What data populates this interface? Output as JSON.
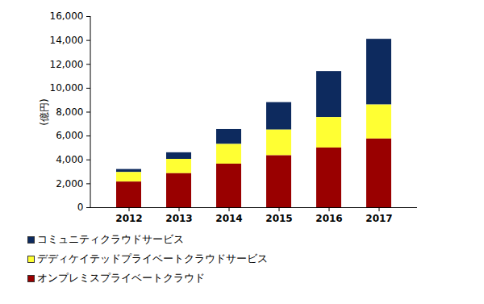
{
  "chart_data": {
    "type": "bar",
    "stacked": true,
    "y_label": "(億円)",
    "categories": [
      "2012",
      "2013",
      "2014",
      "2015",
      "2016",
      "2017"
    ],
    "series": [
      {
        "name": "コミュニティクラウドサービス",
        "color": "#0d2a5e",
        "values": [
          250,
          550,
          1250,
          2300,
          3850,
          5500
        ]
      },
      {
        "name": "デディケイテッドプライベートクラウドサービス",
        "color": "#ffff33",
        "values": [
          800,
          1200,
          1650,
          2150,
          2550,
          2850
        ]
      },
      {
        "name": "オンプレミスプライベートクラウド",
        "color": "#990000",
        "values": [
          2150,
          2850,
          3650,
          4350,
          5000,
          5750
        ]
      }
    ],
    "ylim": [
      0,
      16000
    ],
    "yticks": [
      0,
      {
        "value": 2000,
        "label": "2,000"
      },
      {
        "value": 4000,
        "label": "4,000"
      },
      {
        "value": 6000,
        "label": "6,000"
      },
      {
        "value": 8000,
        "label": "8,000"
      },
      {
        "value": 10000,
        "label": "10,000"
      },
      {
        "value": 12000,
        "label": "12,000"
      },
      {
        "value": 14000,
        "label": "14,000"
      },
      {
        "value": 16000,
        "label": "16,000"
      }
    ],
    "grid": false,
    "legend": "bottom"
  }
}
